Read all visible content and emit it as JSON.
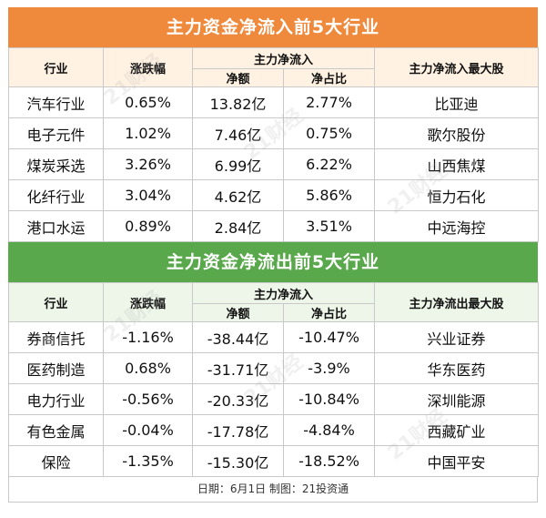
{
  "inflow": {
    "title": "主力资金净流入前5大行业",
    "headers": {
      "industry": "行业",
      "change": "涨跌幅",
      "net_group": "主力净流入",
      "net_amount": "净额",
      "net_ratio": "净占比",
      "top_stock": "主力净流入最大股"
    },
    "rows": [
      {
        "industry": "汽车行业",
        "change": "0.65%",
        "amount": "13.82亿",
        "ratio": "2.77%",
        "stock": "比亚迪"
      },
      {
        "industry": "电子元件",
        "change": "1.02%",
        "amount": "7.46亿",
        "ratio": "0.75%",
        "stock": "歌尔股份"
      },
      {
        "industry": "煤炭采选",
        "change": "3.26%",
        "amount": "6.99亿",
        "ratio": "6.22%",
        "stock": "山西焦煤"
      },
      {
        "industry": "化纤行业",
        "change": "3.04%",
        "amount": "4.62亿",
        "ratio": "5.86%",
        "stock": "恒力石化"
      },
      {
        "industry": "港口水运",
        "change": "0.89%",
        "amount": "2.84亿",
        "ratio": "3.51%",
        "stock": "中远海控"
      }
    ]
  },
  "outflow": {
    "title": "主力资金净流出前5大行业",
    "headers": {
      "industry": "行业",
      "change": "涨跌幅",
      "net_group": "主力净流入",
      "net_amount": "净额",
      "net_ratio": "净占比",
      "top_stock": "主力净流出最大股"
    },
    "rows": [
      {
        "industry": "券商信托",
        "change": "-1.16%",
        "amount": "-38.44亿",
        "ratio": "-10.47%",
        "stock": "兴业证券"
      },
      {
        "industry": "医药制造",
        "change": "0.68%",
        "amount": "-31.71亿",
        "ratio": "-3.9%",
        "stock": "华东医药"
      },
      {
        "industry": "电力行业",
        "change": "-0.56%",
        "amount": "-20.33亿",
        "ratio": "-10.84%",
        "stock": "深圳能源"
      },
      {
        "industry": "有色金属",
        "change": "-0.04%",
        "amount": "-17.78亿",
        "ratio": "-4.84%",
        "stock": "西藏矿业"
      },
      {
        "industry": "保险",
        "change": "-1.35%",
        "amount": "-15.30亿",
        "ratio": "-18.52%",
        "stock": "中国平安"
      }
    ]
  },
  "footer": "日期：6月1日 制图：21投资通",
  "watermark": "21财经",
  "colors": {
    "inflow_banner": "#ef8a3c",
    "outflow_banner": "#5aa84c",
    "inflow_header_bg": "#fff2e2",
    "outflow_header_bg": "#edf6e9"
  }
}
